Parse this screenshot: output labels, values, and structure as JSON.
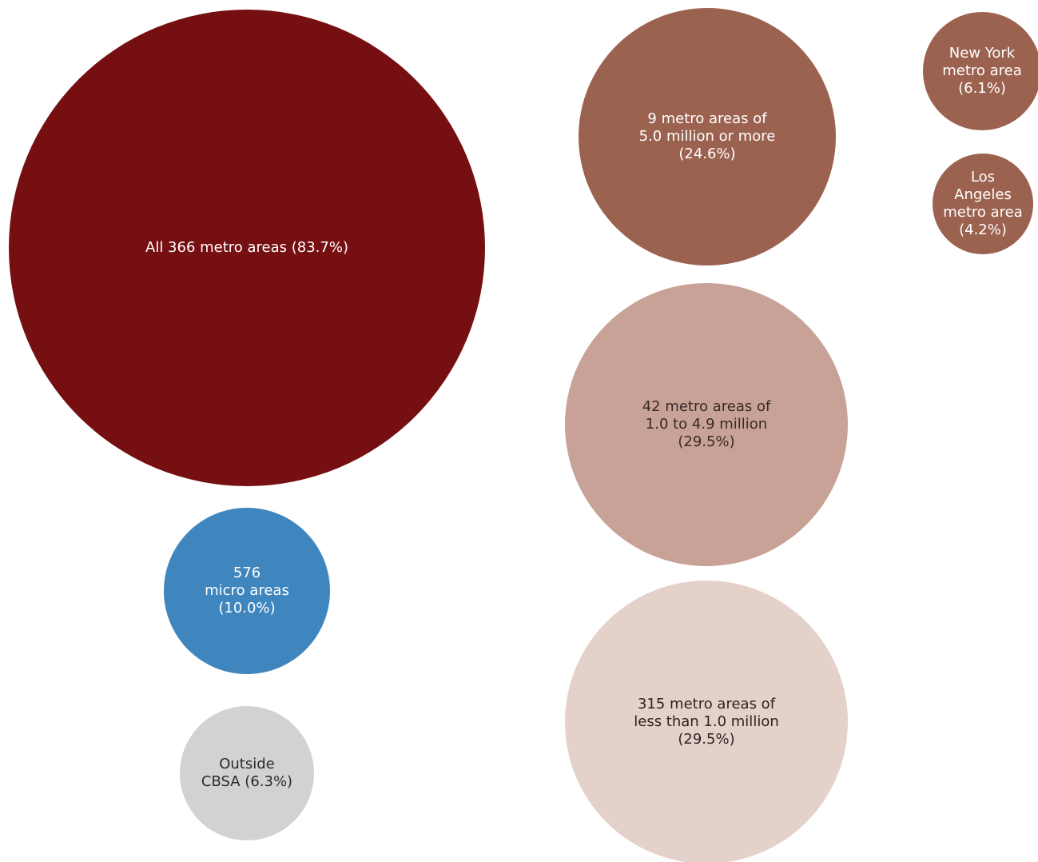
{
  "chart_data": {
    "type": "bubble",
    "bubbles": [
      {
        "id": "all-metro",
        "lines": [
          "All 366 metro areas (83.7%)"
        ],
        "share_pct": 83.7,
        "color": "#760f12",
        "text_color": "#ffffff"
      },
      {
        "id": "metro-5m-plus",
        "lines": [
          "9 metro areas of",
          "5.0 million or more",
          "(24.6%)"
        ],
        "share_pct": 24.6,
        "color": "#9c6250",
        "text_color": "#ffffff"
      },
      {
        "id": "new-york",
        "lines": [
          "New York",
          "metro area",
          "(6.1%)"
        ],
        "share_pct": 6.1,
        "color": "#9c6250",
        "text_color": "#ffffff"
      },
      {
        "id": "los-angeles",
        "lines": [
          "Los",
          "Angeles",
          "metro area",
          "(4.2%)"
        ],
        "share_pct": 4.2,
        "color": "#9c6250",
        "text_color": "#ffffff"
      },
      {
        "id": "metro-1m-4.9m",
        "lines": [
          "42 metro areas of",
          "1.0 to 4.9 million",
          "(29.5%)"
        ],
        "share_pct": 29.5,
        "color": "#c8a296",
        "text_color": "#3a2a26"
      },
      {
        "id": "metro-under-1m",
        "lines": [
          "315 metro areas of",
          "less than 1.0 million",
          "(29.5%)"
        ],
        "share_pct": 29.5,
        "color": "#e4d1c9",
        "text_color": "#2a2422"
      },
      {
        "id": "micro",
        "lines": [
          "576",
          "micro areas",
          "(10.0%)"
        ],
        "share_pct": 10.0,
        "color": "#3f86bf",
        "text_color": "#ffffff"
      },
      {
        "id": "outside-cbsa",
        "lines": [
          "Outside",
          "CBSA (6.3%)"
        ],
        "share_pct": 6.3,
        "color": "#d1d2d4",
        "text_color": "#2a2a2a"
      }
    ]
  }
}
